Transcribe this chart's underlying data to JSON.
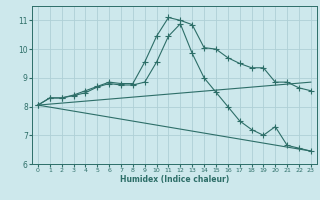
{
  "xlabel": "Humidex (Indice chaleur)",
  "bg_color": "#cde8ec",
  "grid_color": "#afd0d6",
  "line_color": "#2d6e68",
  "xlim": [
    -0.5,
    23.5
  ],
  "ylim": [
    6,
    11.5
  ],
  "xticks": [
    0,
    1,
    2,
    3,
    4,
    5,
    6,
    7,
    8,
    9,
    10,
    11,
    12,
    13,
    14,
    15,
    16,
    17,
    18,
    19,
    20,
    21,
    22,
    23
  ],
  "yticks": [
    6,
    7,
    8,
    9,
    10,
    11
  ],
  "lines": [
    {
      "x": [
        0,
        1,
        2,
        3,
        4,
        5,
        6,
        7,
        8,
        9,
        10,
        11,
        12,
        13,
        14,
        15,
        16,
        17,
        18,
        19,
        20,
        21,
        22,
        23
      ],
      "y": [
        8.05,
        8.3,
        8.3,
        8.4,
        8.55,
        8.7,
        8.85,
        8.8,
        8.8,
        9.55,
        10.45,
        11.1,
        11.0,
        10.85,
        10.05,
        10.0,
        9.7,
        9.5,
        9.35,
        9.35,
        8.85,
        8.85,
        8.65,
        8.55
      ],
      "has_markers": true
    },
    {
      "x": [
        0,
        1,
        2,
        3,
        4,
        5,
        6,
        7,
        8,
        9,
        10,
        11,
        12,
        13,
        14,
        15,
        16,
        17,
        18,
        19,
        20,
        21,
        22,
        23
      ],
      "y": [
        8.05,
        8.3,
        8.3,
        8.38,
        8.48,
        8.68,
        8.8,
        8.75,
        8.75,
        8.85,
        9.55,
        10.45,
        10.88,
        9.85,
        9.0,
        8.5,
        8.0,
        7.5,
        7.2,
        7.0,
        7.3,
        6.65,
        6.55,
        6.45
      ],
      "has_markers": true
    },
    {
      "x": [
        0,
        23
      ],
      "y": [
        8.05,
        8.85
      ],
      "has_markers": false
    },
    {
      "x": [
        0,
        23
      ],
      "y": [
        8.05,
        6.45
      ],
      "has_markers": false
    }
  ]
}
